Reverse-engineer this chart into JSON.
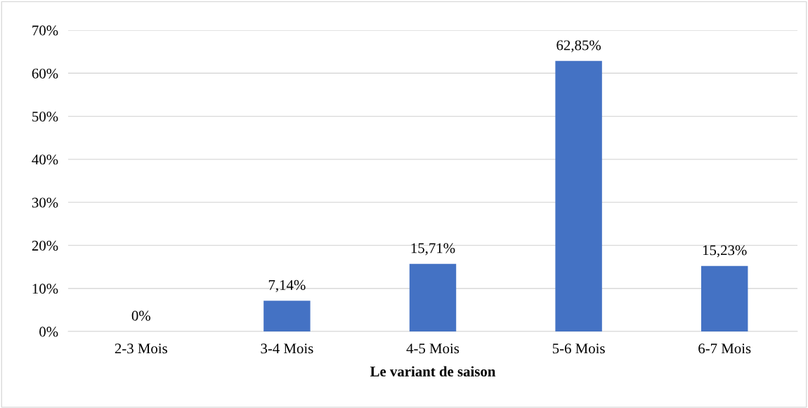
{
  "chart_data": {
    "type": "bar",
    "xlabel": "Le variant de saison",
    "categories": [
      "2-3 Mois",
      "3-4 Mois",
      "4-5 Mois",
      "5-6 Mois",
      "6-7 Mois"
    ],
    "values": [
      0,
      7.14,
      15.71,
      62.85,
      15.23
    ],
    "value_labels": [
      "0%",
      "7,14%",
      "15,71%",
      "62,85%",
      "15,23%"
    ],
    "color": "#4472c4",
    "ylim": [
      0,
      70
    ],
    "yticks": [
      {
        "value": 0,
        "label": "0%"
      },
      {
        "value": 10,
        "label": "10%"
      },
      {
        "value": 20,
        "label": "20%"
      },
      {
        "value": 30,
        "label": "30%"
      },
      {
        "value": 40,
        "label": "40%"
      },
      {
        "value": 50,
        "label": "50%"
      },
      {
        "value": 60,
        "label": "60%"
      },
      {
        "value": 70,
        "label": "70%"
      }
    ],
    "grid": "y"
  }
}
